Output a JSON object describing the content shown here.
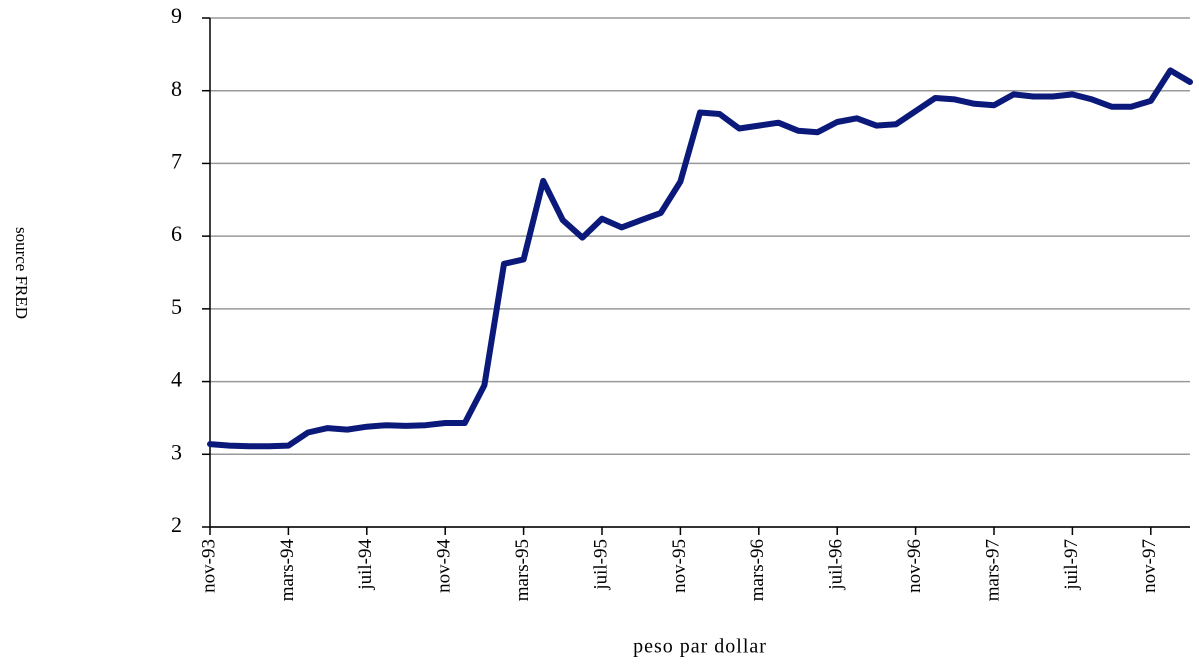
{
  "chart_data": {
    "type": "line",
    "xlabel": "peso par dollar",
    "ylabel": "source FRED",
    "categories": [
      "nov-93",
      null,
      null,
      null,
      "mars-94",
      null,
      null,
      null,
      "juil-94",
      null,
      null,
      null,
      "nov-94",
      null,
      null,
      null,
      "mars-95",
      null,
      null,
      null,
      "juil-95",
      null,
      null,
      null,
      "nov-95",
      null,
      null,
      null,
      "mars-96",
      null,
      null,
      null,
      "juil-96",
      null,
      null,
      null,
      "nov-96",
      null,
      null,
      null,
      "mars-97",
      null,
      null,
      null,
      "juil-97",
      null,
      null,
      null,
      "nov-97",
      null,
      null
    ],
    "series": [
      {
        "name": "peso par dollar",
        "color": "#0b1a7a",
        "values": [
          3.14,
          3.12,
          3.11,
          3.11,
          3.12,
          3.3,
          3.36,
          3.34,
          3.38,
          3.4,
          3.39,
          3.4,
          3.43,
          3.43,
          3.95,
          5.62,
          5.68,
          6.76,
          6.22,
          5.98,
          6.24,
          6.12,
          6.22,
          6.32,
          6.75,
          7.7,
          7.68,
          7.48,
          7.52,
          7.56,
          7.45,
          7.43,
          7.57,
          7.62,
          7.52,
          7.54,
          7.72,
          7.9,
          7.88,
          7.82,
          7.8,
          7.95,
          7.92,
          7.92,
          7.95,
          7.88,
          7.78,
          7.78,
          7.86,
          8.28,
          8.12
        ]
      }
    ],
    "ylim": [
      2,
      9
    ],
    "yticks": [
      2,
      3,
      4,
      5,
      6,
      7,
      8,
      9
    ],
    "grid": true
  }
}
